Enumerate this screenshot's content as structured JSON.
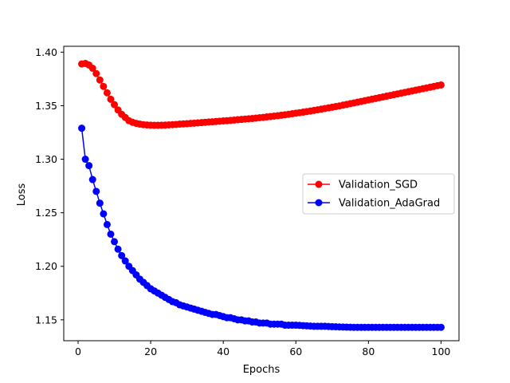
{
  "chart_data": {
    "type": "line",
    "title": "",
    "xlabel": "Epochs",
    "ylabel": "Loss",
    "xlim": [
      -3.95,
      104.95
    ],
    "ylim": [
      1.1305,
      1.4055
    ],
    "xticks": [
      0,
      20,
      40,
      60,
      80,
      100
    ],
    "yticks": [
      1.15,
      1.2,
      1.25,
      1.3,
      1.35,
      1.4
    ],
    "xtick_labels": [
      "0",
      "20",
      "40",
      "60",
      "80",
      "100"
    ],
    "ytick_labels": [
      "1.15",
      "1.20",
      "1.25",
      "1.30",
      "1.35",
      "1.40"
    ],
    "grid": false,
    "legend": {
      "placement": "center-right"
    },
    "series": [
      {
        "name": "Validation_SGD",
        "color": "#ff0000",
        "x": [
          1,
          2,
          3,
          4,
          5,
          6,
          7,
          8,
          9,
          10,
          11,
          12,
          13,
          14,
          15,
          16,
          17,
          18,
          19,
          20,
          21,
          22,
          23,
          24,
          25,
          26,
          27,
          28,
          29,
          30,
          31,
          32,
          33,
          34,
          35,
          36,
          37,
          38,
          39,
          40,
          41,
          42,
          43,
          44,
          45,
          46,
          47,
          48,
          49,
          50,
          51,
          52,
          53,
          54,
          55,
          56,
          57,
          58,
          59,
          60,
          61,
          62,
          63,
          64,
          65,
          66,
          67,
          68,
          69,
          70,
          71,
          72,
          73,
          74,
          75,
          76,
          77,
          78,
          79,
          80,
          81,
          82,
          83,
          84,
          85,
          86,
          87,
          88,
          89,
          90,
          91,
          92,
          93,
          94,
          95,
          96,
          97,
          98,
          99,
          100
        ],
        "y": [
          1.389,
          1.3895,
          1.388,
          1.385,
          1.38,
          1.374,
          1.368,
          1.362,
          1.356,
          1.351,
          1.346,
          1.342,
          1.339,
          1.336,
          1.3345,
          1.3335,
          1.3328,
          1.3323,
          1.332,
          1.3318,
          1.3317,
          1.3317,
          1.3318,
          1.3319,
          1.3321,
          1.3323,
          1.3325,
          1.3328,
          1.333,
          1.3332,
          1.3335,
          1.3337,
          1.334,
          1.3342,
          1.3345,
          1.3348,
          1.335,
          1.3353,
          1.3355,
          1.3358,
          1.336,
          1.3363,
          1.3366,
          1.3369,
          1.3372,
          1.3375,
          1.3378,
          1.3381,
          1.3384,
          1.3388,
          1.3391,
          1.3395,
          1.3399,
          1.3403,
          1.3407,
          1.3411,
          1.3415,
          1.342,
          1.3425,
          1.343,
          1.3435,
          1.344,
          1.3445,
          1.345,
          1.3456,
          1.3462,
          1.3468,
          1.3474,
          1.348,
          1.3486,
          1.3492,
          1.3498,
          1.3505,
          1.3512,
          1.3519,
          1.3526,
          1.3533,
          1.354,
          1.3547,
          1.3554,
          1.3561,
          1.3568,
          1.3575,
          1.3582,
          1.3589,
          1.3596,
          1.3603,
          1.361,
          1.3617,
          1.3624,
          1.3631,
          1.3638,
          1.3645,
          1.3652,
          1.3659,
          1.3666,
          1.3673,
          1.368,
          1.3687,
          1.3694
        ]
      },
      {
        "name": "Validation_AdaGrad",
        "color": "#0000ff",
        "x": [
          1,
          2,
          3,
          4,
          5,
          6,
          7,
          8,
          9,
          10,
          11,
          12,
          13,
          14,
          15,
          16,
          17,
          18,
          19,
          20,
          21,
          22,
          23,
          24,
          25,
          26,
          27,
          28,
          29,
          30,
          31,
          32,
          33,
          34,
          35,
          36,
          37,
          38,
          39,
          40,
          41,
          42,
          43,
          44,
          45,
          46,
          47,
          48,
          49,
          50,
          51,
          52,
          53,
          54,
          55,
          56,
          57,
          58,
          59,
          60,
          61,
          62,
          63,
          64,
          65,
          66,
          67,
          68,
          69,
          70,
          71,
          72,
          73,
          74,
          75,
          76,
          77,
          78,
          79,
          80,
          81,
          82,
          83,
          84,
          85,
          86,
          87,
          88,
          89,
          90,
          91,
          92,
          93,
          94,
          95,
          96,
          97,
          98,
          99,
          100
        ],
        "y": [
          1.329,
          1.3,
          1.294,
          1.281,
          1.27,
          1.259,
          1.249,
          1.239,
          1.23,
          1.223,
          1.216,
          1.21,
          1.205,
          1.2,
          1.196,
          1.192,
          1.188,
          1.185,
          1.182,
          1.179,
          1.177,
          1.175,
          1.173,
          1.171,
          1.169,
          1.167,
          1.166,
          1.164,
          1.163,
          1.162,
          1.161,
          1.16,
          1.159,
          1.158,
          1.157,
          1.156,
          1.155,
          1.155,
          1.154,
          1.153,
          1.152,
          1.152,
          1.151,
          1.15,
          1.15,
          1.149,
          1.149,
          1.148,
          1.148,
          1.147,
          1.147,
          1.147,
          1.146,
          1.146,
          1.146,
          1.146,
          1.145,
          1.145,
          1.145,
          1.145,
          1.1448,
          1.1446,
          1.1444,
          1.1442,
          1.144,
          1.144,
          1.144,
          1.144,
          1.1438,
          1.1436,
          1.1435,
          1.1434,
          1.1433,
          1.1432,
          1.1431,
          1.143,
          1.143,
          1.143,
          1.143,
          1.143,
          1.143,
          1.143,
          1.143,
          1.143,
          1.143,
          1.143,
          1.143,
          1.143,
          1.143,
          1.143,
          1.143,
          1.143,
          1.143,
          1.143,
          1.143,
          1.143,
          1.143,
          1.143,
          1.143,
          1.143
        ]
      }
    ]
  }
}
